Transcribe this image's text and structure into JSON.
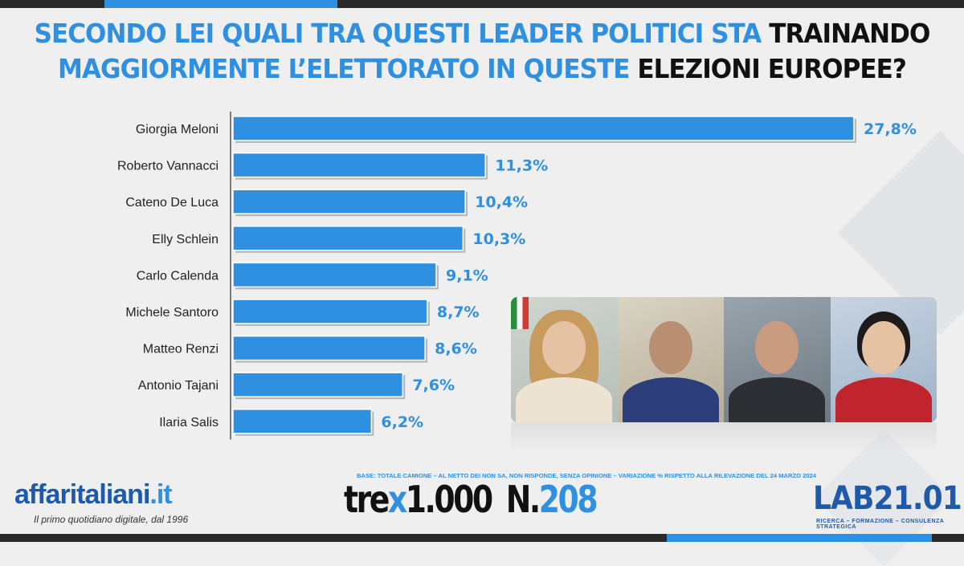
{
  "title": {
    "line1_blue": "SECONDO LEI QUALI TRA QUESTI LEADER POLITICI STA",
    "line1_black": "TRAINANDO",
    "line2_blue": "MAGGIORMENTE L’ELETTORATO IN QUESTE",
    "line2_black": "ELEZIONI EUROPEE?"
  },
  "chart_data": {
    "type": "bar",
    "orientation": "horizontal",
    "categories": [
      "Giorgia Meloni",
      "Roberto Vannacci",
      "Cateno De Luca",
      "Elly Schlein",
      "Carlo Calenda",
      "Michele Santoro",
      "Matteo Renzi",
      "Antonio Tajani",
      "Ilaria Salis"
    ],
    "values": [
      27.8,
      11.3,
      10.4,
      10.3,
      9.1,
      8.7,
      8.6,
      7.6,
      6.2
    ],
    "value_labels": [
      "27,8%",
      "11,3%",
      "10,4%",
      "10,3%",
      "9,1%",
      "8,7%",
      "8,6%",
      "7,6%",
      "6,2%"
    ],
    "unit": "%",
    "xlim": [
      0,
      28.7
    ],
    "bar_color": "#2f8fe0",
    "grid": false,
    "legend": "none"
  },
  "photos": [
    "Giorgia Meloni",
    "Roberto Vannacci",
    "Cateno De Luca",
    "Elly Schlein"
  ],
  "footer": {
    "base_note": "BASE: TOTALE CAMIONE – AL NETTO DEI NON SA, NON RISPONDE, SENZA OPINIONE – VARIAZIONE % RISPETTO ALLA RILEVAZIONE DEL 24 MARZO 2024",
    "affaritaliani": {
      "name": "affaritaliani",
      "suffix": ".it",
      "tagline": "Il primo quotidiano digitale, dal 1996"
    },
    "trex": {
      "pre": "tre",
      "x": "x",
      "post": "1.000",
      "n": "N.",
      "number": "208"
    },
    "lab": {
      "name": "LAB21.01",
      "tagline": "RICERCA – FORMAZIONE – CONSULENZA STRATEGICA"
    }
  },
  "colors": {
    "accent": "#2f8fe0",
    "dark": "#2a2a2a",
    "brand_dark": "#1e5aa8"
  }
}
